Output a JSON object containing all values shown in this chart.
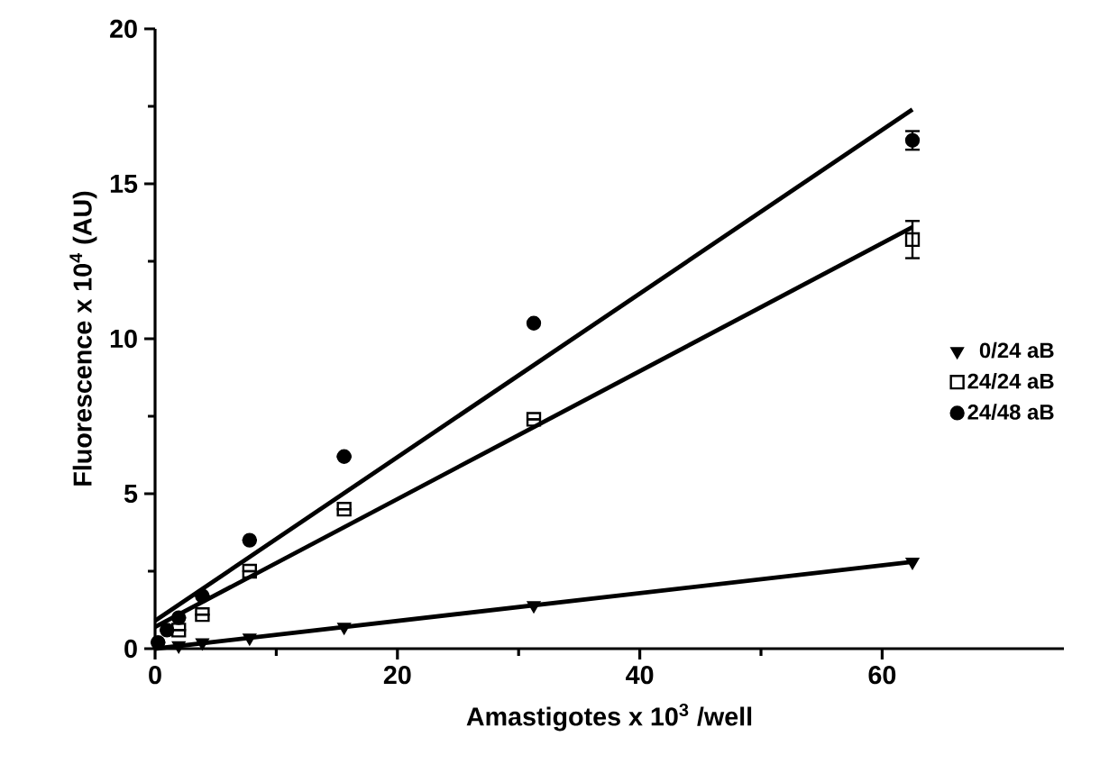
{
  "chart_data": {
    "type": "scatter",
    "xlabel": "Amastigotes x 10$^{3}$ /well",
    "ylabel": "Fluorescence x 10$^{4}$ (AU)",
    "xlim": [
      0,
      75
    ],
    "ylim": [
      0,
      20
    ],
    "xticks": [
      0,
      20,
      40,
      60
    ],
    "yticks": [
      0,
      5,
      10,
      15,
      20
    ],
    "grid": false,
    "legend": "right",
    "series": [
      {
        "name": "0/24 aB",
        "color": "#000000",
        "marker": "triangle",
        "x": [
          1.95,
          3.9,
          7.8,
          15.6,
          31.25,
          62.5
        ],
        "values": [
          0.1,
          0.2,
          0.35,
          0.7,
          1.4,
          2.8
        ]
      },
      {
        "name": "24/24 aB",
        "color": "#000000",
        "marker": "square",
        "x": [
          1.95,
          3.9,
          7.8,
          15.6,
          31.25,
          62.5
        ],
        "values": [
          0.6,
          1.1,
          2.5,
          4.5,
          7.4,
          13.2
        ],
        "errors": [
          null,
          null,
          null,
          null,
          null,
          0.6
        ]
      },
      {
        "name": "24/48 aB",
        "color": "#000000",
        "marker": "circle",
        "x": [
          0.24,
          0.98,
          1.95,
          3.9,
          7.8,
          15.6,
          31.25,
          62.5
        ],
        "values": [
          0.2,
          0.6,
          1.0,
          1.7,
          3.5,
          6.2,
          10.5,
          16.4
        ],
        "errors": [
          null,
          null,
          null,
          null,
          null,
          null,
          null,
          0.3
        ]
      },
      {
        "type": "line",
        "color": "#000000",
        "line_style": "solid",
        "x": [
          0,
          62.5
        ],
        "values": [
          0.0,
          2.8
        ]
      },
      {
        "type": "line",
        "color": "#000000",
        "line_style": "solid",
        "x": [
          0,
          62.5
        ],
        "values": [
          0.7,
          13.6
        ]
      },
      {
        "type": "line",
        "color": "#000000",
        "line_style": "solid",
        "x": [
          0,
          62.5
        ],
        "values": [
          0.9,
          17.4
        ]
      }
    ]
  }
}
